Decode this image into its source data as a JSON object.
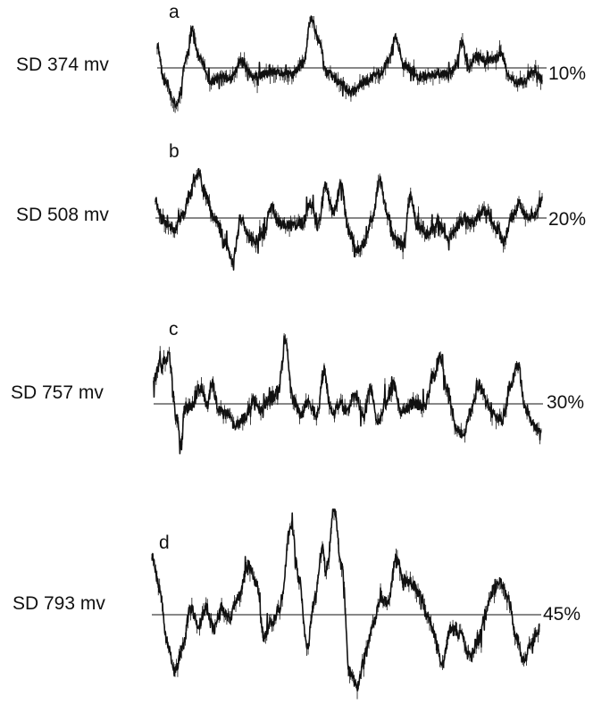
{
  "chart_data": {
    "type": "line",
    "panels": [
      {
        "letter": "a",
        "sd_label": "SD 374 mv",
        "percent_label": "10%",
        "seed": 11,
        "baseline": 0.0,
        "ylim": [
          -2.2,
          2.2
        ],
        "noise": 0.18,
        "anchors": [
          [
            0.0,
            0.9
          ],
          [
            0.02,
            -0.6
          ],
          [
            0.05,
            -1.6
          ],
          [
            0.08,
            0.6
          ],
          [
            0.09,
            1.6
          ],
          [
            0.11,
            0.4
          ],
          [
            0.14,
            -0.6
          ],
          [
            0.17,
            -0.4
          ],
          [
            0.19,
            -0.5
          ],
          [
            0.22,
            0.3
          ],
          [
            0.25,
            -0.4
          ],
          [
            0.3,
            -0.2
          ],
          [
            0.35,
            -0.3
          ],
          [
            0.38,
            0.2
          ],
          [
            0.4,
            2.1
          ],
          [
            0.42,
            1.2
          ],
          [
            0.44,
            -0.2
          ],
          [
            0.48,
            -0.7
          ],
          [
            0.5,
            -1.1
          ],
          [
            0.54,
            -0.6
          ],
          [
            0.58,
            -0.2
          ],
          [
            0.6,
            0.3
          ],
          [
            0.62,
            1.3
          ],
          [
            0.64,
            0.1
          ],
          [
            0.68,
            -0.4
          ],
          [
            0.72,
            -0.3
          ],
          [
            0.76,
            -0.2
          ],
          [
            0.78,
            0.2
          ],
          [
            0.79,
            1.1
          ],
          [
            0.81,
            0.0
          ],
          [
            0.83,
            0.5
          ],
          [
            0.86,
            0.3
          ],
          [
            0.89,
            0.6
          ],
          [
            0.92,
            -0.5
          ],
          [
            0.95,
            -0.6
          ],
          [
            0.98,
            -0.2
          ],
          [
            1.0,
            -0.5
          ]
        ]
      },
      {
        "letter": "b",
        "sd_label": "SD 508 mv",
        "percent_label": "20%",
        "seed": 23,
        "baseline": 0.0,
        "ylim": [
          -2.4,
          2.4
        ],
        "noise": 0.2,
        "anchors": [
          [
            0.0,
            0.7
          ],
          [
            0.02,
            -0.1
          ],
          [
            0.05,
            -0.4
          ],
          [
            0.07,
            0.1
          ],
          [
            0.09,
            0.9
          ],
          [
            0.11,
            1.8
          ],
          [
            0.13,
            0.9
          ],
          [
            0.15,
            0.1
          ],
          [
            0.18,
            -0.9
          ],
          [
            0.2,
            -1.7
          ],
          [
            0.22,
            0.0
          ],
          [
            0.25,
            -0.9
          ],
          [
            0.28,
            -0.6
          ],
          [
            0.3,
            0.4
          ],
          [
            0.32,
            -0.2
          ],
          [
            0.35,
            -0.3
          ],
          [
            0.38,
            -0.2
          ],
          [
            0.4,
            0.6
          ],
          [
            0.42,
            -0.3
          ],
          [
            0.44,
            1.2
          ],
          [
            0.46,
            0.2
          ],
          [
            0.48,
            1.2
          ],
          [
            0.5,
            -0.5
          ],
          [
            0.52,
            -1.2
          ],
          [
            0.54,
            -1.0
          ],
          [
            0.56,
            0.0
          ],
          [
            0.58,
            1.4
          ],
          [
            0.6,
            0.1
          ],
          [
            0.62,
            -0.8
          ],
          [
            0.64,
            -1.1
          ],
          [
            0.66,
            0.8
          ],
          [
            0.68,
            -0.4
          ],
          [
            0.7,
            -0.6
          ],
          [
            0.73,
            -0.2
          ],
          [
            0.76,
            -0.8
          ],
          [
            0.78,
            -0.3
          ],
          [
            0.8,
            0.0
          ],
          [
            0.82,
            -0.2
          ],
          [
            0.85,
            0.3
          ],
          [
            0.88,
            -0.3
          ],
          [
            0.9,
            -0.9
          ],
          [
            0.92,
            0.0
          ],
          [
            0.94,
            0.5
          ],
          [
            0.96,
            0.0
          ],
          [
            0.98,
            0.2
          ],
          [
            1.0,
            0.7
          ]
        ]
      },
      {
        "letter": "c",
        "sd_label": "SD 757 mv",
        "percent_label": "30%",
        "seed": 37,
        "baseline": 0.0,
        "ylim": [
          -2.2,
          2.6
        ],
        "noise": 0.2,
        "anchors": [
          [
            0.0,
            0.8
          ],
          [
            0.02,
            1.2
          ],
          [
            0.04,
            1.4
          ],
          [
            0.06,
            -0.6
          ],
          [
            0.07,
            -1.6
          ],
          [
            0.08,
            -0.2
          ],
          [
            0.1,
            -0.1
          ],
          [
            0.12,
            0.5
          ],
          [
            0.14,
            0.0
          ],
          [
            0.15,
            0.6
          ],
          [
            0.17,
            -0.3
          ],
          [
            0.19,
            -0.4
          ],
          [
            0.21,
            -0.9
          ],
          [
            0.23,
            -0.6
          ],
          [
            0.26,
            0.1
          ],
          [
            0.28,
            -0.2
          ],
          [
            0.3,
            0.2
          ],
          [
            0.32,
            0.3
          ],
          [
            0.34,
            1.8
          ],
          [
            0.36,
            0.1
          ],
          [
            0.38,
            -0.4
          ],
          [
            0.4,
            0.1
          ],
          [
            0.42,
            -0.5
          ],
          [
            0.44,
            1.0
          ],
          [
            0.46,
            -0.4
          ],
          [
            0.48,
            0.0
          ],
          [
            0.5,
            -0.3
          ],
          [
            0.52,
            0.3
          ],
          [
            0.54,
            -0.4
          ],
          [
            0.56,
            0.5
          ],
          [
            0.58,
            -0.8
          ],
          [
            0.6,
            0.1
          ],
          [
            0.62,
            0.6
          ],
          [
            0.64,
            -0.3
          ],
          [
            0.67,
            0.0
          ],
          [
            0.7,
            -0.1
          ],
          [
            0.72,
            0.8
          ],
          [
            0.74,
            1.4
          ],
          [
            0.76,
            0.4
          ],
          [
            0.78,
            -1.0
          ],
          [
            0.8,
            -1.2
          ],
          [
            0.82,
            -0.2
          ],
          [
            0.84,
            0.6
          ],
          [
            0.86,
            0.0
          ],
          [
            0.88,
            -0.5
          ],
          [
            0.9,
            -0.7
          ],
          [
            0.92,
            0.6
          ],
          [
            0.94,
            1.2
          ],
          [
            0.96,
            -0.3
          ],
          [
            0.98,
            -0.8
          ],
          [
            1.0,
            -1.2
          ]
        ]
      },
      {
        "letter": "d",
        "sd_label": "SD 793 mv",
        "percent_label": "45%",
        "seed": 53,
        "baseline": 0.0,
        "ylim": [
          -2.6,
          3.0
        ],
        "noise": 0.16,
        "anchors": [
          [
            0.0,
            1.7
          ],
          [
            0.02,
            0.8
          ],
          [
            0.04,
            -0.8
          ],
          [
            0.06,
            -1.6
          ],
          [
            0.08,
            -0.9
          ],
          [
            0.1,
            0.2
          ],
          [
            0.12,
            -0.3
          ],
          [
            0.14,
            0.2
          ],
          [
            0.16,
            -0.4
          ],
          [
            0.18,
            0.2
          ],
          [
            0.2,
            -0.1
          ],
          [
            0.22,
            0.4
          ],
          [
            0.25,
            1.4
          ],
          [
            0.27,
            0.9
          ],
          [
            0.29,
            -0.6
          ],
          [
            0.31,
            -0.2
          ],
          [
            0.33,
            0.2
          ],
          [
            0.36,
            2.6
          ],
          [
            0.38,
            1.0
          ],
          [
            0.4,
            -0.9
          ],
          [
            0.42,
            0.4
          ],
          [
            0.44,
            1.9
          ],
          [
            0.45,
            1.2
          ],
          [
            0.47,
            3.0
          ],
          [
            0.49,
            1.4
          ],
          [
            0.51,
            -1.6
          ],
          [
            0.53,
            -2.0
          ],
          [
            0.55,
            -1.1
          ],
          [
            0.57,
            -0.3
          ],
          [
            0.59,
            0.4
          ],
          [
            0.61,
            0.4
          ],
          [
            0.63,
            1.6
          ],
          [
            0.65,
            1.0
          ],
          [
            0.67,
            0.9
          ],
          [
            0.69,
            0.6
          ],
          [
            0.71,
            0.0
          ],
          [
            0.73,
            -0.6
          ],
          [
            0.75,
            -1.4
          ],
          [
            0.77,
            -0.4
          ],
          [
            0.8,
            -0.6
          ],
          [
            0.82,
            -1.2
          ],
          [
            0.84,
            -0.8
          ],
          [
            0.86,
            0.0
          ],
          [
            0.88,
            0.7
          ],
          [
            0.9,
            0.9
          ],
          [
            0.92,
            0.4
          ],
          [
            0.94,
            -0.6
          ],
          [
            0.96,
            -1.3
          ],
          [
            0.98,
            -0.8
          ],
          [
            1.0,
            -0.4
          ]
        ]
      }
    ]
  }
}
